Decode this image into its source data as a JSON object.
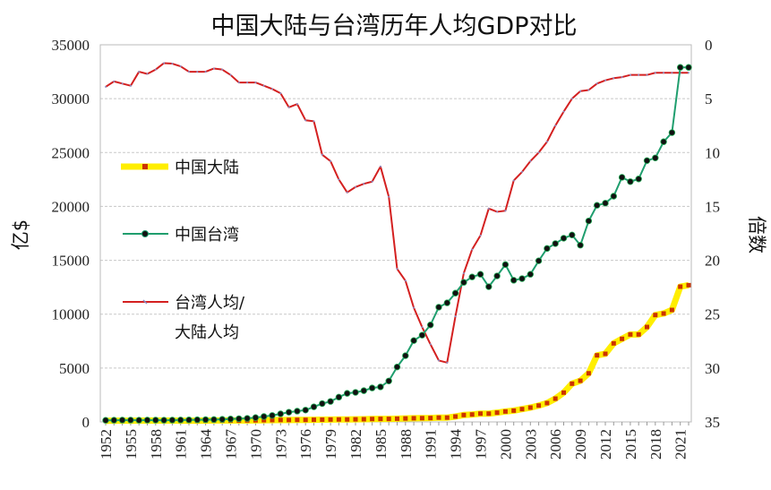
{
  "chart_data": {
    "type": "line",
    "title": "中国大陆与台湾历年人均GDP对比",
    "ylabel": "亿$",
    "y2label": "倍数",
    "ylim": [
      0,
      35000
    ],
    "y2lim": [
      35,
      0
    ],
    "y2_inverted": true,
    "yticks": [
      "0",
      "5000",
      "10000",
      "15000",
      "20000",
      "25000",
      "30000",
      "35000"
    ],
    "y2ticks": [
      "0",
      "5",
      "10",
      "15",
      "20",
      "25",
      "30",
      "35"
    ],
    "xticks": [
      "1952",
      "1955",
      "1958",
      "1961",
      "1964",
      "1967",
      "1970",
      "1973",
      "1976",
      "1979",
      "1982",
      "1985",
      "1988",
      "1991",
      "1994",
      "1997",
      "2000",
      "2003",
      "2006",
      "2009",
      "2012",
      "2015",
      "2018",
      "2021"
    ],
    "grid": true,
    "legend_position": "left",
    "x": [
      1952,
      1953,
      1954,
      1955,
      1956,
      1957,
      1958,
      1959,
      1960,
      1961,
      1962,
      1963,
      1964,
      1965,
      1966,
      1967,
      1968,
      1969,
      1970,
      1971,
      1972,
      1973,
      1974,
      1975,
      1976,
      1977,
      1978,
      1979,
      1980,
      1981,
      1982,
      1983,
      1984,
      1985,
      1986,
      1987,
      1988,
      1989,
      1990,
      1991,
      1992,
      1993,
      1994,
      1995,
      1996,
      1997,
      1998,
      1999,
      2000,
      2001,
      2002,
      2003,
      2004,
      2005,
      2006,
      2007,
      2008,
      2009,
      2010,
      2011,
      2012,
      2013,
      2014,
      2015,
      2016,
      2017,
      2018,
      2019,
      2020,
      2021,
      2022
    ],
    "series": [
      {
        "name": "中国大陆",
        "axis": "left",
        "color": "#ffee00",
        "marker_color": "#cc3300",
        "values": [
          100,
          110,
          110,
          110,
          120,
          120,
          130,
          120,
          120,
          110,
          110,
          110,
          120,
          130,
          130,
          130,
          130,
          140,
          150,
          160,
          170,
          180,
          180,
          190,
          190,
          200,
          210,
          220,
          230,
          230,
          240,
          250,
          270,
          280,
          280,
          300,
          320,
          340,
          350,
          360,
          400,
          400,
          500,
          640,
          690,
          770,
          770,
          860,
          970,
          1050,
          1190,
          1330,
          1520,
          1750,
          2160,
          2720,
          3550,
          3820,
          4510,
          6180,
          6320,
          7290,
          7710,
          8120,
          8120,
          8810,
          9920,
          10060,
          10390,
          12550,
          12690
        ]
      },
      {
        "name": "中国台湾",
        "axis": "left",
        "color": "#1f9e6e",
        "marker_color": "#111111",
        "values": [
          150,
          160,
          170,
          170,
          160,
          170,
          170,
          160,
          170,
          180,
          190,
          200,
          210,
          220,
          240,
          270,
          300,
          330,
          400,
          500,
          600,
          750,
          900,
          1000,
          1100,
          1400,
          1700,
          1900,
          2300,
          2650,
          2740,
          2900,
          3150,
          3250,
          3800,
          5100,
          6150,
          7550,
          8050,
          9000,
          10650,
          11050,
          11950,
          12950,
          13450,
          13700,
          12550,
          13550,
          14600,
          13150,
          13300,
          13700,
          14950,
          16100,
          16550,
          17050,
          17350,
          16400,
          18650,
          20100,
          20300,
          20950,
          22700,
          22300,
          22550,
          24250,
          24500,
          26000,
          26850,
          32900,
          32900
        ]
      },
      {
        "name": "台湾人均/大陆人均",
        "name_line1": "台湾人均/",
        "name_line2": "大陆人均",
        "axis": "right",
        "color": "#d42020",
        "marker_color": "#8a8fc8",
        "values": [
          3.9,
          3.4,
          3.6,
          3.8,
          2.5,
          2.7,
          2.3,
          1.7,
          1.75,
          2.0,
          2.5,
          2.5,
          2.5,
          2.2,
          2.3,
          2.8,
          3.5,
          3.5,
          3.5,
          3.8,
          4.1,
          4.5,
          5.8,
          5.5,
          7.0,
          7.1,
          10.2,
          10.8,
          12.5,
          13.7,
          13.2,
          12.9,
          12.7,
          11.3,
          14.1,
          20.8,
          21.9,
          24.4,
          26.2,
          27.8,
          29.3,
          29.5,
          25.2,
          21.2,
          19.0,
          17.7,
          15.2,
          15.5,
          15.4,
          12.6,
          11.8,
          10.8,
          10.0,
          9.0,
          7.5,
          6.2,
          5.0,
          4.3,
          4.2,
          3.6,
          3.3,
          3.1,
          3.0,
          2.8,
          2.8,
          2.8,
          2.6,
          2.6,
          2.6,
          2.6,
          2.6
        ]
      }
    ]
  }
}
